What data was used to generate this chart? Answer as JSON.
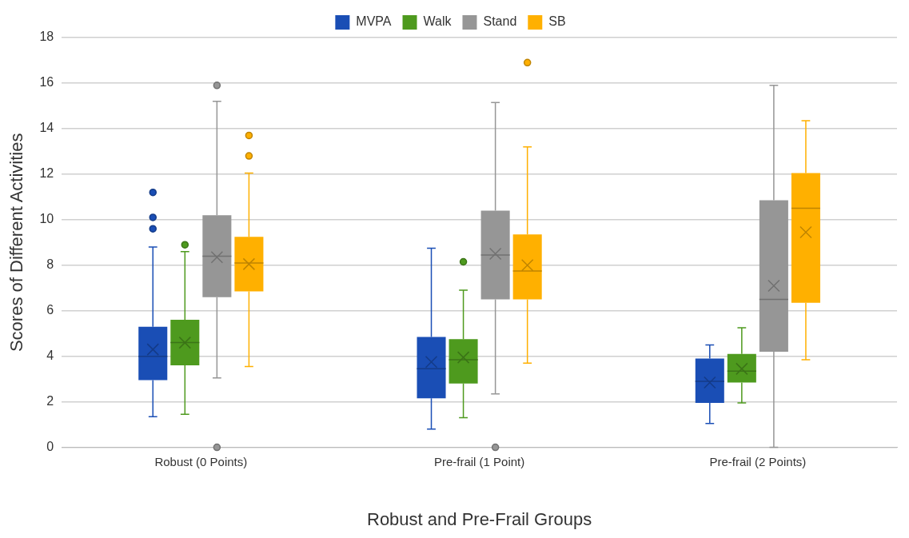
{
  "chart_data": {
    "type": "box",
    "xlabel": "Robust and Pre-Frail Groups",
    "ylabel": "Scores of Different Activities",
    "categories": [
      "Robust (0 Points)",
      "Pre-frail (1 Point)",
      "Pre-frail (2 Points)"
    ],
    "ylim": [
      0,
      18
    ],
    "yticks": [
      0,
      2,
      4,
      6,
      8,
      10,
      12,
      14,
      16,
      18
    ],
    "grid": "y",
    "legend": "top",
    "marker": "circle",
    "series": [
      {
        "name": "MVPA",
        "color": "#1a4eb5",
        "boxes": [
          {
            "low": 1.35,
            "q1": 2.95,
            "median": 4.0,
            "q3": 5.3,
            "high": 8.8,
            "mean": 4.3,
            "outliers": [
              9.6,
              10.1,
              11.2
            ]
          },
          {
            "low": 0.8,
            "q1": 2.15,
            "median": 3.45,
            "q3": 4.85,
            "high": 8.75,
            "mean": 3.75
          },
          {
            "low": 1.05,
            "q1": 1.95,
            "median": 2.9,
            "q3": 3.9,
            "high": 4.5,
            "mean": 2.85
          }
        ]
      },
      {
        "name": "Walk",
        "color": "#4e9a1e",
        "boxes": [
          {
            "low": 1.45,
            "q1": 3.6,
            "median": 4.6,
            "q3": 5.6,
            "high": 8.6,
            "mean": 4.6,
            "outliers": [
              8.9
            ]
          },
          {
            "low": 1.3,
            "q1": 2.8,
            "median": 3.85,
            "q3": 4.75,
            "high": 6.9,
            "mean": 3.95,
            "outliers": [
              8.15
            ]
          },
          {
            "low": 1.95,
            "q1": 2.85,
            "median": 3.35,
            "q3": 4.1,
            "high": 5.25,
            "mean": 3.45
          }
        ]
      },
      {
        "name": "Stand",
        "color": "#969696",
        "boxes": [
          {
            "low": 3.05,
            "q1": 6.6,
            "median": 8.4,
            "q3": 10.2,
            "high": 15.2,
            "mean": 8.35,
            "outliers": [
              15.9,
              0
            ]
          },
          {
            "low": 2.35,
            "q1": 6.5,
            "median": 8.45,
            "q3": 10.4,
            "high": 15.15,
            "mean": 8.5,
            "outliers": [
              0
            ]
          },
          {
            "low": 0,
            "q1": 4.2,
            "median": 6.5,
            "q3": 10.85,
            "high": 15.9,
            "mean": 7.1
          }
        ]
      },
      {
        "name": "SB",
        "color": "#ffb000",
        "boxes": [
          {
            "low": 3.55,
            "q1": 6.85,
            "median": 8.1,
            "q3": 9.25,
            "high": 12.05,
            "mean": 8.05,
            "outliers": [
              12.8,
              13.7
            ]
          },
          {
            "low": 3.7,
            "q1": 6.5,
            "median": 7.75,
            "q3": 9.35,
            "high": 13.2,
            "mean": 8.0,
            "outliers": [
              16.9
            ]
          },
          {
            "low": 3.85,
            "q1": 6.35,
            "median": 10.5,
            "q3": 12.05,
            "high": 14.35,
            "mean": 9.45
          }
        ]
      }
    ]
  }
}
